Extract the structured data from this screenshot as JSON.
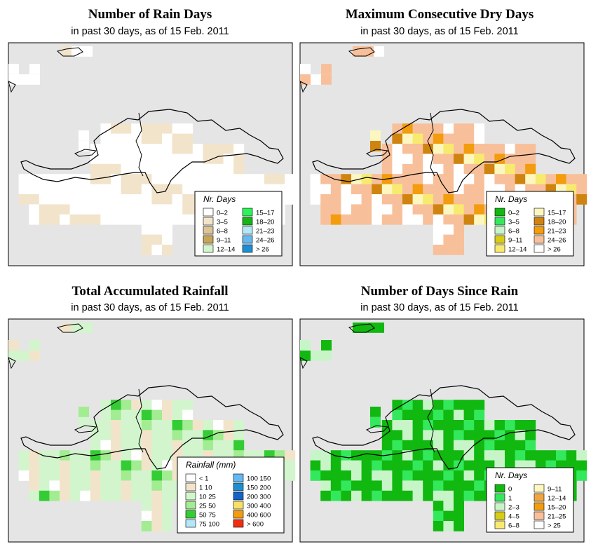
{
  "panels": [
    {
      "id": "rain-days",
      "title": "Number of Rain Days",
      "subtitle": "in past 30 days, as of  15 Feb. 2011",
      "legend_title": "Nr. Days",
      "legend": [
        {
          "label": "0–2",
          "color": "#ffffff"
        },
        {
          "label": "3–5",
          "color": "#f2e4cb"
        },
        {
          "label": "6–8",
          "color": "#dcc49a"
        },
        {
          "label": "9–11",
          "color": "#c8a455"
        },
        {
          "label": "12–14",
          "color": "#d2f5cd"
        },
        {
          "label": "15–17",
          "color": "#2ef25a"
        },
        {
          "label": "18–20",
          "color": "#16b416"
        },
        {
          "label": "21–23",
          "color": "#b4e8f8"
        },
        {
          "label": "24–26",
          "color": "#64b9f0"
        },
        {
          "label": "> 26",
          "color": "#1e8ed2"
        }
      ]
    },
    {
      "id": "dry-days",
      "title": "Maximum Consecutive Dry Days",
      "subtitle": "in past 30 days, as of  15 Feb. 2011",
      "legend_title": "Nr. Days",
      "legend": [
        {
          "label": "0–2",
          "color": "#10b810"
        },
        {
          "label": "3–5",
          "color": "#34e85c"
        },
        {
          "label": "6–8",
          "color": "#c8f5c8"
        },
        {
          "label": "9–11",
          "color": "#d8cc14"
        },
        {
          "label": "12–14",
          "color": "#f8ea6e"
        },
        {
          "label": "15–17",
          "color": "#fcf6c0"
        },
        {
          "label": "18–20",
          "color": "#d08410"
        },
        {
          "label": "21–23",
          "color": "#f29c0e"
        },
        {
          "label": "24–26",
          "color": "#f8c09a"
        },
        {
          "label": "> 26",
          "color": "#ffffff"
        }
      ]
    },
    {
      "id": "rainfall",
      "title": "Total Accumulated Rainfall",
      "subtitle": "in past 30 days, as of  15 Feb. 2011",
      "legend_title": "Rainfall (mm)",
      "legend": [
        {
          "label": "< 1",
          "color": "#ffffff"
        },
        {
          "label": "1    10",
          "color": "#f2e4cb"
        },
        {
          "label": "10    25",
          "color": "#d2f5cd"
        },
        {
          "label": "25    50",
          "color": "#a2ec92"
        },
        {
          "label": "50    75",
          "color": "#34cc34"
        },
        {
          "label": "75    100",
          "color": "#b4e8f8"
        },
        {
          "label": "100    150",
          "color": "#64b9f0"
        },
        {
          "label": "150    200",
          "color": "#1e8ed2"
        },
        {
          "label": "200    300",
          "color": "#1464c8"
        },
        {
          "label": "300    400",
          "color": "#f8e066"
        },
        {
          "label": "400    600",
          "color": "#f29c0e"
        },
        {
          "label": "> 600",
          "color": "#f22c0e"
        }
      ]
    },
    {
      "id": "days-since",
      "title": "Number of Days Since Rain",
      "subtitle": "in past 30 days, as of  15 Feb. 2011",
      "legend_title": "Nr. Days",
      "legend": [
        {
          "label": "0",
          "color": "#10b810"
        },
        {
          "label": "1",
          "color": "#34e85c"
        },
        {
          "label": "2–3",
          "color": "#c8f5c8"
        },
        {
          "label": "4–5",
          "color": "#d8cc14"
        },
        {
          "label": "6–8",
          "color": "#f8ea6e"
        },
        {
          "label": "9–11",
          "color": "#fcf6c0"
        },
        {
          "label": "12–14",
          "color": "#f0a640"
        },
        {
          "label": "15–20",
          "color": "#f29c0e"
        },
        {
          "label": "21–25",
          "color": "#f8c09a"
        },
        {
          "label": "> 25",
          "color": "#ffffff"
        }
      ]
    }
  ],
  "colors": {
    "ocean": "#e5e5e5",
    "border": "#000000"
  }
}
